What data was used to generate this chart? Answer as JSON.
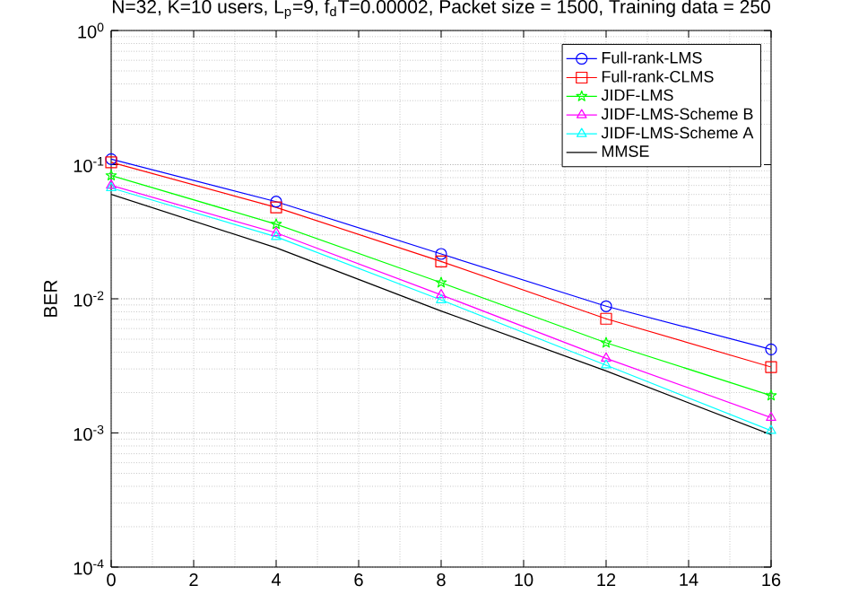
{
  "chart_data": {
    "type": "line",
    "title": "N=32, K=10 users, L$_{p}$=9, f$_{d}$T=0.00002, Packet size = 1500, Training data = 250",
    "ylabel": "BER",
    "x": [
      0,
      4,
      8,
      12,
      16
    ],
    "series": [
      {
        "name": "Full-rank-LMS",
        "color": "#0000ff",
        "marker": "circle",
        "values": [
          0.11,
          0.053,
          0.0216,
          0.0088,
          0.0042
        ]
      },
      {
        "name": "Full-rank-CLMS",
        "color": "#ff0000",
        "marker": "square",
        "values": [
          0.104,
          0.048,
          0.019,
          0.0071,
          0.0031
        ]
      },
      {
        "name": "JIDF-LMS",
        "color": "#00ff00",
        "marker": "star",
        "values": [
          0.083,
          0.036,
          0.0132,
          0.0047,
          0.0019
        ]
      },
      {
        "name": "JIDF-LMS-Scheme B",
        "color": "#ff00ff",
        "marker": "triangle",
        "values": [
          0.07,
          0.031,
          0.0107,
          0.0036,
          0.0013
        ]
      },
      {
        "name": "JIDF-LMS-Scheme A",
        "color": "#00ffff",
        "marker": "triangle",
        "values": [
          0.067,
          0.029,
          0.0098,
          0.0032,
          0.00104
        ]
      },
      {
        "name": "MMSE",
        "color": "#000000",
        "marker": "none",
        "values": [
          0.06,
          0.024,
          0.0081,
          0.0029,
          0.00097
        ]
      }
    ],
    "log": "y",
    "xlim": [
      0,
      16
    ],
    "xticks": [
      0,
      2,
      4,
      6,
      8,
      10,
      12,
      14,
      16
    ],
    "ylim": [
      0.0001,
      1
    ],
    "yticks": [
      {
        "value": 0.0001,
        "label": "10$^{-4}$"
      },
      {
        "value": 0.001,
        "label": "10$^{-3}$"
      },
      {
        "value": 0.01,
        "label": "10$^{-2}$"
      },
      {
        "value": 0.1,
        "label": "10$^{-1}$"
      },
      {
        "value": 1,
        "label": "10$^{0}$"
      }
    ],
    "grid": true,
    "legend": "top right",
    "line_style": "solid"
  }
}
